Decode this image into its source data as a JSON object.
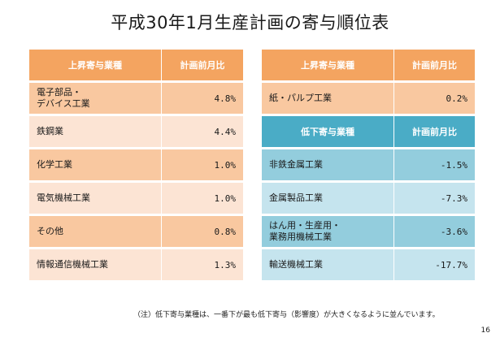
{
  "title": "平成30年1月生産計画の寄与順位表",
  "colors": {
    "orange_header": "#f4a460",
    "orange_row": "#f9c8a0",
    "orange_row_light": "#fce4d4",
    "blue_header": "#4aacc6",
    "blue_row": "#93cddd",
    "blue_row_light": "#c5e4ee"
  },
  "left_table": {
    "header": {
      "industry": "上昇寄与業種",
      "ratio": "計画前月比"
    },
    "rows": [
      {
        "industry": "電子部品・\nデバイス工業",
        "ratio": "4.8%"
      },
      {
        "industry": "鉄鋼業",
        "ratio": "4.4%"
      },
      {
        "industry": "化学工業",
        "ratio": "1.0%"
      },
      {
        "industry": "電気機械工業",
        "ratio": "1.0%"
      },
      {
        "industry": "その他",
        "ratio": "0.8%"
      },
      {
        "industry": "情報通信機械工業",
        "ratio": "1.3%"
      }
    ]
  },
  "right_table": {
    "up_header": {
      "industry": "上昇寄与業種",
      "ratio": "計画前月比"
    },
    "up_rows": [
      {
        "industry": "紙・パルプ工業",
        "ratio": "0.2%"
      }
    ],
    "down_header": {
      "industry": "低下寄与業種",
      "ratio": "計画前月比"
    },
    "down_rows": [
      {
        "industry": "非鉄金属工業",
        "ratio": "-1.5%"
      },
      {
        "industry": "金属製品工業",
        "ratio": "-7.3%"
      },
      {
        "industry": "はん用・生産用・\n業務用機械工業",
        "ratio": "-3.6%"
      },
      {
        "industry": "輸送機械工業",
        "ratio": "-17.7%"
      }
    ]
  },
  "note": "（注）低下寄与業種は、一番下が最も低下寄与（影響度）が大きくなるように並んでいます。",
  "page_number": "16"
}
